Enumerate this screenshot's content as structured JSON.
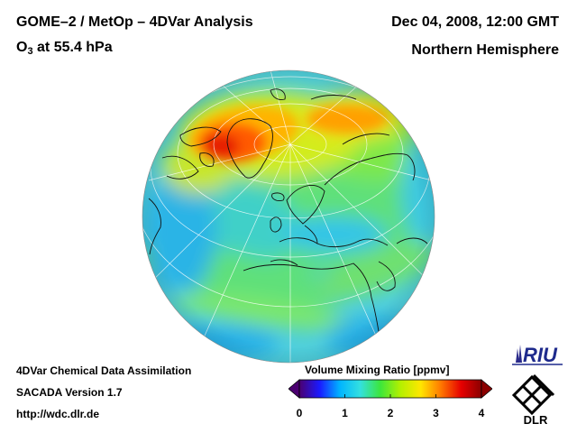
{
  "header": {
    "title": "GOME–2 / MetOp – 4DVar Analysis",
    "subtitle_prefix": "O",
    "subtitle_sub": "3",
    "subtitle_rest": " at 55.4 hPa",
    "date": "Dec 04, 2008, 12:00 GMT",
    "region": "Northern Hemisphere"
  },
  "footer": {
    "line1": "4DVar Chemical Data Assimilation",
    "line2": "SACADA Version 1.7",
    "line3": "http://wdc.dlr.de"
  },
  "colorbar": {
    "label": "Volume Mixing Ratio [ppmv]",
    "ticks": [
      "0",
      "1",
      "2",
      "3",
      "4"
    ],
    "range": [
      0,
      4
    ],
    "colors": [
      "#4b0070",
      "#1a1aff",
      "#00b4ff",
      "#33e0e0",
      "#3ce63c",
      "#b4f000",
      "#ffe600",
      "#ff7800",
      "#e60000",
      "#8b0000"
    ]
  },
  "logos": {
    "riu": "RIU",
    "dlr": "DLR"
  }
}
